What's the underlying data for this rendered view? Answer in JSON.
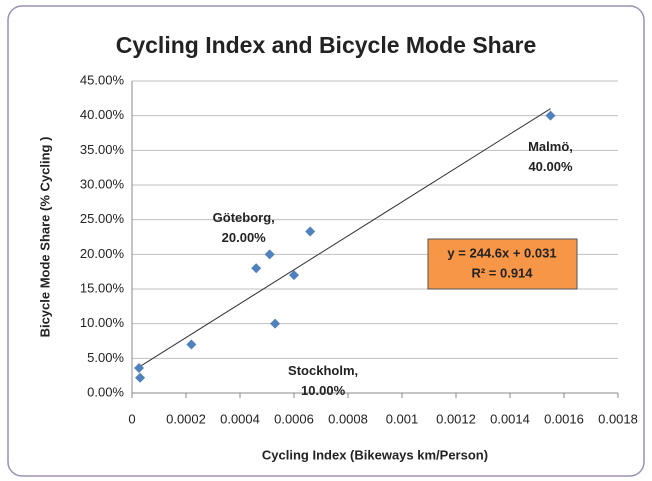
{
  "chart_data": {
    "type": "scatter",
    "title": "Cycling Index and Bicycle Mode Share",
    "x_label": "Cycling Index (Bikeways km/Person)",
    "y_label": "Bicycle Mode Share (% Cycling )",
    "series": [
      {
        "color": "#4f81bd",
        "x": [
          2.6e-05,
          3e-05,
          0.00022,
          0.00046,
          0.00051,
          0.00053,
          0.0006,
          0.00066,
          0.00155
        ],
        "values": [
          0.036,
          0.022,
          0.07,
          0.18,
          0.2,
          0.1,
          0.17,
          0.233,
          0.4
        ]
      }
    ],
    "xlim": [
      0,
      0.0018
    ],
    "xticks": [
      0,
      0.0002,
      0.0004,
      0.0006,
      0.0008,
      0.001,
      0.0012,
      0.0014,
      0.0016,
      0.0018
    ],
    "ylim": [
      0,
      0.45
    ],
    "yticks": [
      {
        "value": 0,
        "label": "0.00%"
      },
      {
        "value": 0.05,
        "label": "5.00%"
      },
      {
        "value": 0.1,
        "label": "10.00%"
      },
      {
        "value": 0.15,
        "label": "15.00%"
      },
      {
        "value": 0.2,
        "label": "20.00%"
      },
      {
        "value": 0.25,
        "label": "25.00%"
      },
      {
        "value": 0.3,
        "label": "30.00%"
      },
      {
        "value": 0.35,
        "label": "35.00%"
      },
      {
        "value": 0.4,
        "label": "40.00%"
      },
      {
        "value": 0.45,
        "label": "45.00%"
      }
    ],
    "grid": true,
    "annotations": [
      {
        "point": 4,
        "lines": [
          "Göteborg,",
          "20.00%"
        ]
      },
      {
        "point": 5,
        "lines": [
          "Stockholm,",
          "10.00%"
        ]
      },
      {
        "point": 8,
        "lines": [
          "Malmö,",
          "40.00%"
        ]
      }
    ],
    "trendline": {
      "slope": 244.6,
      "intercept": 0.031,
      "equation": "y = 244.6x + 0.031",
      "r2": "R² = 0.914",
      "box_color": "#f79646"
    }
  }
}
